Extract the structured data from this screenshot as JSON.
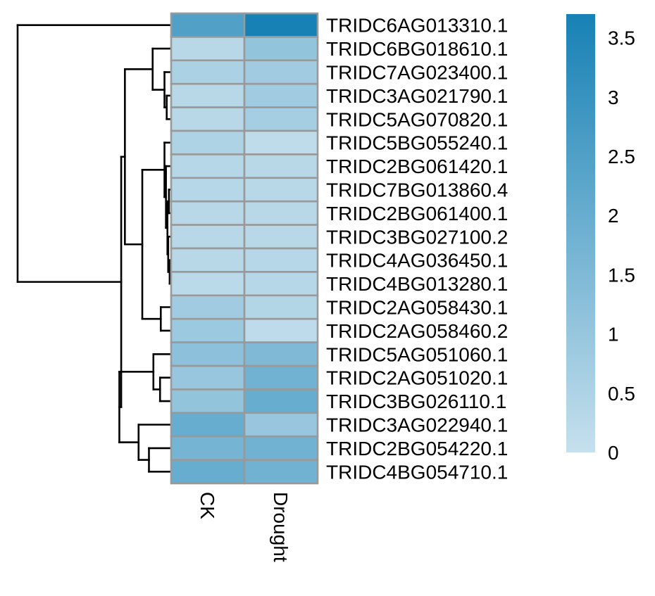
{
  "chart_data": {
    "type": "heatmap",
    "title": "",
    "xlabel": "",
    "ylabel": "",
    "columns": [
      "CK",
      "Drought"
    ],
    "rows": [
      "TRIDC6AG013310.1",
      "TRIDC6BG018610.1",
      "TRIDC7AG023400.1",
      "TRIDC3AG021790.1",
      "TRIDC5AG070820.1",
      "TRIDC5BG055240.1",
      "TRIDC2BG061420.1",
      "TRIDC7BG013860.4",
      "TRIDC2BG061400.1",
      "TRIDC3BG027100.2",
      "TRIDC4AG036450.1",
      "TRIDC4BG013280.1",
      "TRIDC2AG058430.1",
      "TRIDC2AG058460.2",
      "TRIDC5AG051060.1",
      "TRIDC2AG051020.1",
      "TRIDC3BG026110.1",
      "TRIDC3AG022940.1",
      "TRIDC2BG054220.1",
      "TRIDC4BG054710.1"
    ],
    "values": [
      [
        2.5,
        3.7
      ],
      [
        0.3,
        1.1
      ],
      [
        0.6,
        0.8
      ],
      [
        0.3,
        0.8
      ],
      [
        0.3,
        0.7
      ],
      [
        0.5,
        0.15
      ],
      [
        0.35,
        0.3
      ],
      [
        0.35,
        0.3
      ],
      [
        0.3,
        0.3
      ],
      [
        0.3,
        0.3
      ],
      [
        0.3,
        0.35
      ],
      [
        0.25,
        0.35
      ],
      [
        0.8,
        0.4
      ],
      [
        0.9,
        0.2
      ],
      [
        1.2,
        1.5
      ],
      [
        1.0,
        1.8
      ],
      [
        1.1,
        2.0
      ],
      [
        2.0,
        1.0
      ],
      [
        1.7,
        1.8
      ],
      [
        2.0,
        1.8
      ]
    ],
    "color_scale": {
      "min": 0,
      "max": 3.7,
      "low_color": "#c6e0ed",
      "high_color": "#1781b5",
      "ticks": [
        0,
        0.5,
        1,
        1.5,
        2,
        2.5,
        3,
        3.5
      ],
      "tick_labels": [
        "0",
        "0.5",
        "1",
        "1.5",
        "2",
        "2.5",
        "3",
        "3.5"
      ]
    },
    "legend": "right",
    "grid_color": "#999999",
    "dendrogram": {
      "side": "left",
      "merges": [
        {
          "left": 10,
          "right": 11,
          "height": 0.04
        },
        {
          "left": 7,
          "right": 8,
          "height": 0.06
        },
        {
          "left": "m0",
          "right": 9,
          "height": 0.08
        },
        {
          "left": "m1",
          "right": "m2",
          "height": 0.1
        },
        {
          "left": 6,
          "right": "m3",
          "height": 0.14
        },
        {
          "left": 5,
          "right": "m4",
          "height": 0.18
        },
        {
          "left": 3,
          "right": 4,
          "height": 0.12
        },
        {
          "left": 2,
          "right": "m6",
          "height": 0.18
        },
        {
          "left": 1,
          "right": "m7",
          "height": 0.5
        },
        {
          "left": 12,
          "right": 13,
          "height": 0.28
        },
        {
          "left": "m5",
          "right": "m9",
          "height": 0.78
        },
        {
          "left": "m8",
          "right": "m10",
          "height": 1.25
        },
        {
          "left": 15,
          "right": 16,
          "height": 0.3
        },
        {
          "left": 14,
          "right": "m12",
          "height": 0.48
        },
        {
          "left": 18,
          "right": 19,
          "height": 0.6
        },
        {
          "left": 17,
          "right": "m14",
          "height": 0.88
        },
        {
          "left": "m13",
          "right": "m15",
          "height": 1.4
        },
        {
          "left": "m11",
          "right": "m16",
          "height": 1.35
        },
        {
          "left": 0,
          "right": "m17",
          "height": 4.15
        }
      ]
    }
  }
}
